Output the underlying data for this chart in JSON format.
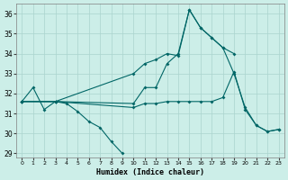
{
  "xlabel": "Humidex (Indice chaleur)",
  "bg_color": "#cceee8",
  "grid_color": "#aad4ce",
  "line_color": "#006666",
  "xlim": [
    -0.5,
    23.5
  ],
  "ylim": [
    28.8,
    36.5
  ],
  "yticks": [
    29,
    30,
    31,
    32,
    33,
    34,
    35,
    36
  ],
  "xticks": [
    0,
    1,
    2,
    3,
    4,
    5,
    6,
    7,
    8,
    9,
    10,
    11,
    12,
    13,
    14,
    15,
    16,
    17,
    18,
    19,
    20,
    21,
    22,
    23
  ],
  "series": [
    {
      "x": [
        0,
        1,
        2,
        3,
        4,
        5,
        6,
        7,
        8,
        9
      ],
      "y": [
        31.6,
        32.3,
        31.2,
        31.6,
        31.5,
        31.1,
        30.6,
        30.3,
        29.6,
        29.0
      ]
    },
    {
      "x": [
        0,
        3,
        10,
        11,
        12,
        13,
        14,
        15,
        16,
        17,
        18,
        19,
        20,
        21,
        22,
        23
      ],
      "y": [
        31.6,
        31.6,
        31.3,
        31.5,
        31.5,
        31.6,
        31.6,
        31.6,
        31.6,
        31.6,
        31.8,
        33.1,
        31.2,
        30.4,
        30.1,
        30.2
      ]
    },
    {
      "x": [
        0,
        3,
        10,
        11,
        12,
        13,
        14,
        15,
        16,
        17,
        18,
        19,
        20,
        21,
        22,
        23
      ],
      "y": [
        31.6,
        31.6,
        31.5,
        32.3,
        32.3,
        33.5,
        34.0,
        36.2,
        35.3,
        34.8,
        34.3,
        33.0,
        31.3,
        30.4,
        30.1,
        30.2
      ]
    },
    {
      "x": [
        0,
        3,
        10,
        11,
        12,
        13,
        14,
        15,
        16,
        17,
        18,
        19
      ],
      "y": [
        31.6,
        31.6,
        33.0,
        33.5,
        33.7,
        34.0,
        33.9,
        36.2,
        35.3,
        34.8,
        34.3,
        34.0
      ]
    }
  ]
}
